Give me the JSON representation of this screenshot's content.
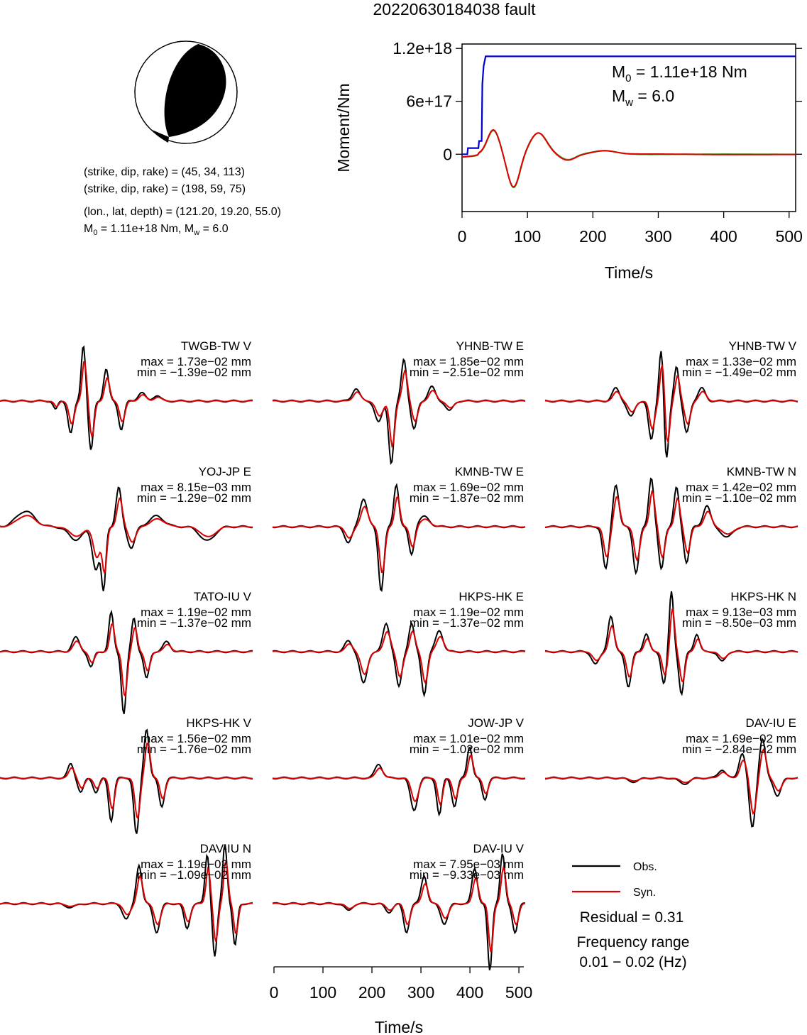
{
  "title": "20220630184038 fault",
  "colors": {
    "obs": "#000000",
    "syn": "#dd0000",
    "moment": "#0000cc",
    "mr_obs": "#33bb33",
    "mr_syn": "#dd0000"
  },
  "mechanism": {
    "line1": "(strike, dip, rake) = (45, 34, 113)",
    "line2": "(strike, dip, rake) = (198, 59, 75)",
    "line3": "(lon., lat, depth) = (121.20, 19.20, 55.0)",
    "m0_prefix": "M",
    "m0_sub": "0",
    "m0_rest": " = 1.11e+18 Nm, M",
    "mw_sub": "w",
    "mw_rest": " = 6.0"
  },
  "moment_chart": {
    "ylabel": "Moment/Nm",
    "xlabel": "Time/s",
    "yticks": [
      "1.2e+18",
      "6e+17",
      "0"
    ],
    "xticks": [
      "0",
      "100",
      "200",
      "300",
      "400",
      "500"
    ],
    "m0_text_a": "M",
    "m0_sub": "0",
    "m0_text_b": " = 1.11e+18 Nm",
    "mw_text_a": "M",
    "mw_sub": "w",
    "mw_text_b": " = 6.0"
  },
  "legend": {
    "obs": "Obs.",
    "syn": "Syn.",
    "residual": "Residual = 0.31",
    "freq_label": "Frequency range",
    "freq_value": "0.01 − 0.02 (Hz)"
  },
  "wave_axis": {
    "xlabel": "Time/s",
    "xticks": [
      "0",
      "100",
      "200",
      "300",
      "400",
      "500"
    ]
  },
  "chart_data": [
    {
      "type": "line",
      "title": "",
      "xlabel": "Time/s",
      "ylabel": "Moment/Nm",
      "xlim": [
        0,
        510
      ],
      "ylim": [
        -6.5e+17,
        1.25e+18
      ],
      "series": [
        {
          "x": [
            0,
            8,
            9,
            25,
            26,
            30,
            31,
            33,
            36,
            37,
            510
          ],
          "values": [
            0,
            0,
            7e+16,
            7e+16,
            1.5e+17,
            1.5e+17,
            8e+17,
            1e+18,
            1.11e+18,
            1.11e+18,
            1.11e+18
          ]
        }
      ]
    },
    {
      "type": "line",
      "stations": [
        {
          "name": "TWGB-TW V",
          "max": "max = 1.73e−02 mm",
          "min": "min = −1.39e−02 mm"
        },
        {
          "name": "YHNB-TW E",
          "max": "max = 1.85e−02 mm",
          "min": "min = −2.51e−02 mm"
        },
        {
          "name": "YHNB-TW V",
          "max": "max = 1.33e−02 mm",
          "min": "min = −1.49e−02 mm"
        },
        {
          "name": "YOJ-JP E",
          "max": "max = 8.15e−03 mm",
          "min": "min = −1.29e−02 mm"
        },
        {
          "name": "KMNB-TW E",
          "max": "max = 1.69e−02 mm",
          "min": "min = −1.87e−02 mm"
        },
        {
          "name": "KMNB-TW N",
          "max": "max = 1.42e−02 mm",
          "min": "min = −1.10e−02 mm"
        },
        {
          "name": "TATO-IU V",
          "max": "max = 1.19e−02 mm",
          "min": "min = −1.37e−02 mm"
        },
        {
          "name": "HKPS-HK E",
          "max": "max = 1.19e−02 mm",
          "min": "min = −1.37e−02 mm"
        },
        {
          "name": "HKPS-HK N",
          "max": "max = 9.13e−03 mm",
          "min": "min = −8.50e−03 mm"
        },
        {
          "name": "HKPS-HK V",
          "max": "max = 1.56e−02 mm",
          "min": "min = −1.76e−02 mm"
        },
        {
          "name": "JOW-JP V",
          "max": "max = 1.01e−02 mm",
          "min": "min = −1.02e−02 mm"
        },
        {
          "name": "DAV-IU E",
          "max": "max = 1.69e−02 mm",
          "min": "min = −2.84e−02 mm"
        },
        {
          "name": "DAV-IU N",
          "max": "max = 1.19e−02 mm",
          "min": "min = −1.09e−02 mm"
        },
        {
          "name": "DAV-IU V",
          "max": "max = 7.95e−03 mm",
          "min": "min = −9.33e−03 mm"
        }
      ]
    }
  ]
}
